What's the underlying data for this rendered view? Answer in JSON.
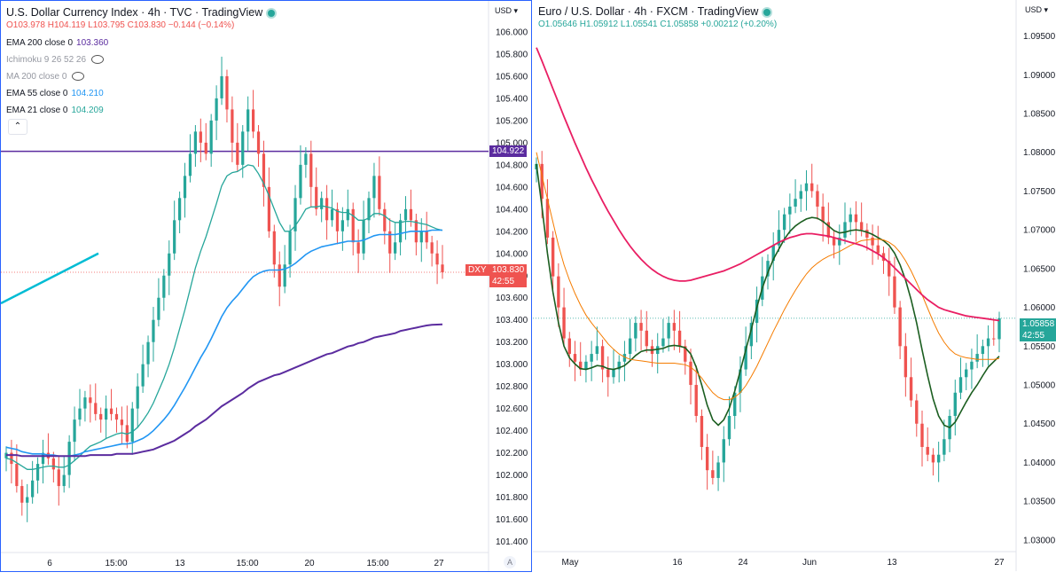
{
  "left_chart": {
    "title": "U.S. Dollar Currency Index · 4h · TVC · TradingView",
    "ohlc": {
      "o": "103.978",
      "h": "104.119",
      "l": "103.795",
      "c": "103.830",
      "chg": "−0.144 (−0.14%)"
    },
    "indicators": [
      {
        "label": "EMA 200 close 0",
        "value": "103.360",
        "color": "#5b2c9f"
      },
      {
        "label": "Ichimoku 9 26 52 26",
        "value": "",
        "color": "#9598a1",
        "hidden": true
      },
      {
        "label": "MA 200 close 0",
        "value": "",
        "color": "#9598a1",
        "hidden": true
      },
      {
        "label": "EMA 55 close 0",
        "value": "104.210",
        "color": "#2196f3"
      },
      {
        "label": "EMA 21 close 0",
        "value": "104.209",
        "color": "#26a69a"
      }
    ],
    "currency": "USD",
    "hline_label": "104.922",
    "price_label": {
      "symbol": "DXY",
      "price": "103.830",
      "countdown": "42:55"
    },
    "auto_btn": "A"
  },
  "right_chart": {
    "title": "Euro / U.S. Dollar · 4h · FXCM · TradingView",
    "ohlc": {
      "o": "1.05646",
      "h": "1.05912",
      "l": "1.05541",
      "c": "1.05858",
      "chg": "+0.00212 (+0.20%)"
    },
    "currency": "USD",
    "price_label": {
      "price": "1.05858",
      "countdown": "42:55"
    }
  },
  "colors": {
    "up": "#26a69a",
    "down": "#ef5350",
    "hline": "#5b2c9f"
  },
  "chart_data": [
    {
      "type": "line",
      "title": "U.S. Dollar Currency Index · 4h · TVC",
      "ylim": [
        101.3,
        106.2
      ],
      "yticks": [
        "106.000",
        "105.800",
        "105.600",
        "105.400",
        "105.200",
        "105.000",
        "104.800",
        "104.600",
        "104.400",
        "104.200",
        "104.000",
        "103.800",
        "103.600",
        "103.400",
        "103.200",
        "103.000",
        "102.800",
        "102.600",
        "102.400",
        "102.200",
        "102.000",
        "101.800",
        "101.600",
        "101.400"
      ],
      "xticks": [
        "6",
        "15:00",
        "13",
        "15:00",
        "20",
        "15:00",
        "27"
      ],
      "close": [
        102.2,
        102.1,
        101.9,
        101.75,
        101.8,
        101.95,
        102.1,
        102.2,
        102.15,
        102.05,
        101.9,
        102.0,
        102.3,
        102.5,
        102.6,
        102.7,
        102.65,
        102.55,
        102.5,
        102.6,
        102.55,
        102.5,
        102.45,
        102.3,
        102.6,
        102.8,
        103.0,
        103.2,
        103.4,
        103.6,
        103.8,
        104.0,
        104.3,
        104.5,
        104.7,
        104.9,
        105.1,
        105.0,
        104.9,
        105.2,
        105.4,
        105.6,
        105.3,
        105.0,
        104.8,
        105.1,
        105.3,
        105.1,
        104.9,
        104.6,
        104.2,
        103.9,
        103.7,
        103.9,
        104.2,
        104.5,
        104.8,
        104.9,
        104.6,
        104.4,
        104.5,
        104.3,
        104.4,
        104.2,
        104.3,
        104.4,
        104.1,
        104.0,
        104.3,
        104.5,
        104.7,
        104.4,
        104.2,
        104.0,
        104.1,
        104.3,
        104.4,
        104.3,
        104.1,
        104.2,
        104.1,
        104.0,
        103.9,
        103.83
      ],
      "series": [
        {
          "name": "EMA 21 close 0",
          "values": [
            102.15,
            102.14,
            102.11,
            102.08,
            102.05,
            102.05,
            102.06,
            102.07,
            102.08,
            102.08,
            102.07,
            102.07,
            102.09,
            102.13,
            102.17,
            102.22,
            102.26,
            102.28,
            102.3,
            102.33,
            102.35,
            102.37,
            102.38,
            102.37,
            102.39,
            102.43,
            102.49,
            102.56,
            102.65,
            102.76,
            102.87,
            103.0,
            103.15,
            103.32,
            103.49,
            103.68,
            103.87,
            104.02,
            104.15,
            104.3,
            104.45,
            104.61,
            104.7,
            104.73,
            104.74,
            104.77,
            104.8,
            104.79,
            104.72,
            104.63,
            104.52,
            104.4,
            104.28,
            104.2,
            104.2,
            104.25,
            104.32,
            104.4,
            104.42,
            104.42,
            104.43,
            104.42,
            104.41,
            104.38,
            104.37,
            104.37,
            104.34,
            104.3,
            104.3,
            104.32,
            104.36,
            104.36,
            104.34,
            104.3,
            104.28,
            104.28,
            104.29,
            104.29,
            104.28,
            104.27,
            104.26,
            104.24,
            104.22,
            104.209
          ]
        },
        {
          "name": "EMA 55 close 0",
          "values": [
            102.25,
            102.24,
            102.23,
            102.21,
            102.2,
            102.19,
            102.19,
            102.19,
            102.18,
            102.18,
            102.17,
            102.17,
            102.17,
            102.18,
            102.19,
            102.21,
            102.22,
            102.23,
            102.24,
            102.25,
            102.26,
            102.27,
            102.28,
            102.28,
            102.29,
            102.31,
            102.33,
            102.36,
            102.4,
            102.45,
            102.5,
            102.56,
            102.63,
            102.71,
            102.79,
            102.88,
            102.97,
            103.06,
            103.14,
            103.23,
            103.33,
            103.43,
            103.51,
            103.57,
            103.62,
            103.68,
            103.74,
            103.79,
            103.82,
            103.84,
            103.85,
            103.85,
            103.85,
            103.86,
            103.88,
            103.91,
            103.95,
            103.99,
            104.02,
            104.04,
            104.06,
            104.07,
            104.08,
            104.09,
            104.1,
            104.11,
            104.11,
            104.11,
            104.12,
            104.14,
            104.16,
            104.17,
            104.17,
            104.17,
            104.17,
            104.18,
            104.19,
            104.2,
            104.2,
            104.2,
            104.2,
            104.21,
            104.21,
            104.21
          ]
        },
        {
          "name": "EMA 200 close 0",
          "values": [
            102.18,
            102.18,
            102.18,
            102.17,
            102.17,
            102.17,
            102.17,
            102.17,
            102.17,
            102.17,
            102.17,
            102.17,
            102.17,
            102.17,
            102.17,
            102.17,
            102.18,
            102.18,
            102.18,
            102.18,
            102.18,
            102.19,
            102.19,
            102.19,
            102.19,
            102.2,
            102.21,
            102.22,
            102.23,
            102.25,
            102.27,
            102.29,
            102.31,
            102.34,
            102.37,
            102.4,
            102.44,
            102.47,
            102.5,
            102.54,
            102.58,
            102.62,
            102.65,
            102.68,
            102.71,
            102.74,
            102.78,
            102.81,
            102.84,
            102.86,
            102.88,
            102.9,
            102.91,
            102.93,
            102.95,
            102.97,
            102.99,
            103.01,
            103.03,
            103.05,
            103.07,
            103.09,
            103.1,
            103.12,
            103.14,
            103.16,
            103.17,
            103.19,
            103.2,
            103.22,
            103.24,
            103.25,
            103.26,
            103.27,
            103.28,
            103.3,
            103.31,
            103.32,
            103.33,
            103.34,
            103.35,
            103.355,
            103.358,
            103.36
          ]
        }
      ]
    },
    {
      "type": "line",
      "title": "Euro / U.S. Dollar · 4h · FXCM",
      "ylim": [
        1.0285,
        1.0985
      ],
      "yticks": [
        "1.09500",
        "1.09000",
        "1.08500",
        "1.08000",
        "1.07500",
        "1.07000",
        "1.06500",
        "1.06000",
        "1.05500",
        "1.05000",
        "1.04500",
        "1.04000",
        "1.03500",
        "1.03000"
      ],
      "xticks": [
        "May",
        "16",
        "24",
        "Jun",
        "13",
        "27"
      ],
      "close": [
        1.0785,
        1.074,
        1.069,
        1.064,
        1.06,
        1.056,
        1.054,
        1.053,
        1.052,
        1.053,
        1.054,
        1.055,
        1.052,
        1.051,
        1.052,
        1.053,
        1.054,
        1.056,
        1.058,
        1.057,
        1.055,
        1.054,
        1.055,
        1.056,
        1.058,
        1.057,
        1.055,
        1.053,
        1.05,
        1.046,
        1.042,
        1.039,
        1.038,
        1.04,
        1.043,
        1.046,
        1.049,
        1.052,
        1.055,
        1.058,
        1.061,
        1.064,
        1.066,
        1.068,
        1.07,
        1.072,
        1.073,
        1.074,
        1.075,
        1.076,
        1.075,
        1.073,
        1.071,
        1.069,
        1.068,
        1.069,
        1.071,
        1.072,
        1.071,
        1.07,
        1.069,
        1.068,
        1.067,
        1.066,
        1.064,
        1.06,
        1.055,
        1.051,
        1.048,
        1.045,
        1.042,
        1.041,
        1.04,
        1.041,
        1.043,
        1.046,
        1.049,
        1.051,
        1.052,
        1.053,
        1.054,
        1.055,
        1.056,
        1.0559,
        1.0586
      ],
      "series": [
        {
          "name": "EMA 21",
          "values": [
            1.0785,
            1.073,
            1.067,
            1.062,
            1.058,
            1.055,
            1.0535,
            1.0527,
            1.0521,
            1.052,
            1.0522,
            1.0525,
            1.0524,
            1.0521,
            1.052,
            1.0522,
            1.0525,
            1.0531,
            1.0538,
            1.0543,
            1.0545,
            1.0545,
            1.0546,
            1.0547,
            1.055,
            1.0551,
            1.055,
            1.0548,
            1.054,
            1.0523,
            1.05,
            1.0474,
            1.0455,
            1.0448,
            1.0455,
            1.047,
            1.0492,
            1.0518,
            1.0545,
            1.0572,
            1.06,
            1.0625,
            1.0645,
            1.0662,
            1.0675,
            1.0688,
            1.0698,
            1.0705,
            1.071,
            1.0714,
            1.0716,
            1.0715,
            1.0711,
            1.0705,
            1.0699,
            1.0696,
            1.0697,
            1.0699,
            1.07,
            1.0699,
            1.0697,
            1.0694,
            1.069,
            1.0686,
            1.068,
            1.067,
            1.0655,
            1.0635,
            1.061,
            1.058,
            1.0545,
            1.0512,
            1.0482,
            1.046,
            1.0448,
            1.0445,
            1.0452,
            1.0465,
            1.0478,
            1.049,
            1.05,
            1.0512,
            1.0523,
            1.053,
            1.0537
          ]
        },
        {
          "name": "EMA 55",
          "values": [
            1.08,
            1.077,
            1.074,
            1.071,
            1.068,
            1.0655,
            1.0635,
            1.0618,
            1.0603,
            1.059,
            1.058,
            1.0571,
            1.0562,
            1.0553,
            1.0546,
            1.054,
            1.0536,
            1.0533,
            1.0532,
            1.0531,
            1.053,
            1.0529,
            1.0528,
            1.0528,
            1.0528,
            1.0528,
            1.0527,
            1.0526,
            1.0523,
            1.0517,
            1.0509,
            1.0499,
            1.049,
            1.0484,
            1.0481,
            1.0481,
            1.0484,
            1.049,
            1.0499,
            1.0511,
            1.0524,
            1.0539,
            1.0554,
            1.0569,
            1.0583,
            1.0597,
            1.061,
            1.0622,
            1.0633,
            1.0643,
            1.0651,
            1.0657,
            1.0662,
            1.0666,
            1.0669,
            1.0672,
            1.0676,
            1.068,
            1.0683,
            1.0686,
            1.0687,
            1.0688,
            1.0688,
            1.0687,
            1.0684,
            1.0679,
            1.0671,
            1.066,
            1.0647,
            1.0632,
            1.0616,
            1.0599,
            1.0582,
            1.0567,
            1.0555,
            1.0546,
            1.054,
            1.0537,
            1.0535,
            1.0534,
            1.0533,
            1.0533,
            1.0533,
            1.0533,
            1.0534
          ]
        },
        {
          "name": "EMA 200",
          "values": [
            1.0935,
            1.0918,
            1.09,
            1.0882,
            1.0864,
            1.0846,
            1.0829,
            1.0812,
            1.0796,
            1.078,
            1.0765,
            1.0751,
            1.0737,
            1.0724,
            1.0712,
            1.07,
            1.0689,
            1.0679,
            1.067,
            1.0662,
            1.0655,
            1.0649,
            1.0644,
            1.064,
            1.0637,
            1.0635,
            1.0634,
            1.0634,
            1.0635,
            1.0637,
            1.0639,
            1.0641,
            1.0643,
            1.0645,
            1.0647,
            1.065,
            1.0653,
            1.0656,
            1.066,
            1.0664,
            1.0668,
            1.0672,
            1.0676,
            1.068,
            1.0684,
            1.0687,
            1.069,
            1.0692,
            1.0694,
            1.0695,
            1.0695,
            1.0694,
            1.0693,
            1.0692,
            1.069,
            1.0688,
            1.0686,
            1.0684,
            1.0682,
            1.068,
            1.0677,
            1.0673,
            1.0669,
            1.0664,
            1.0658,
            1.0651,
            1.0644,
            1.0637,
            1.063,
            1.0623,
            1.0616,
            1.061,
            1.0605,
            1.06,
            1.0597,
            1.0595,
            1.0593,
            1.0591,
            1.0589,
            1.0588,
            1.0587,
            1.0586,
            1.0585,
            1.0584,
            1.0583
          ]
        }
      ]
    }
  ]
}
